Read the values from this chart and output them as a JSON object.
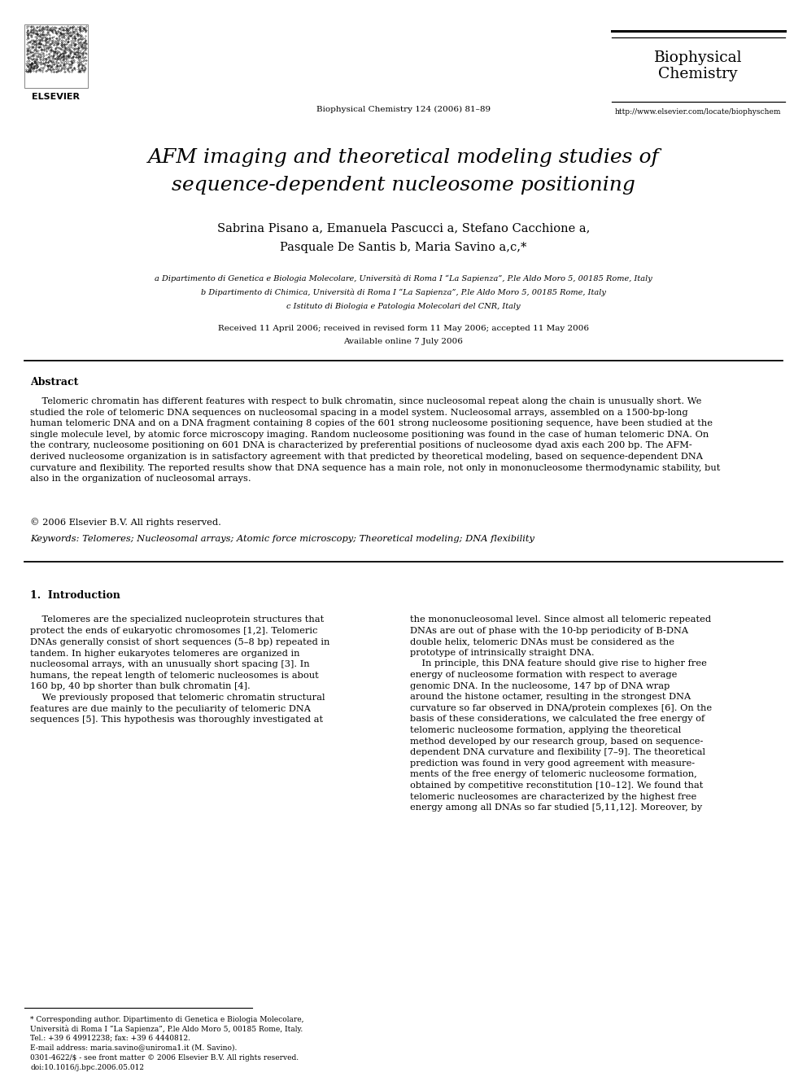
{
  "bg_color": "#ffffff",
  "journal_name_line1": "Biophysical",
  "journal_name_line2": "Chemistry",
  "journal_ref": "Biophysical Chemistry 124 (2006) 81–89",
  "journal_url": "http://www.elsevier.com/locate/biophyschem",
  "title_line1": "AFM imaging and theoretical modeling studies of",
  "title_line2": "sequence-dependent nucleosome positioning",
  "authors_line1": "Sabrina Pisano a, Emanuela Pascucci a, Stefano Cacchione a,",
  "authors_line2": "Pasquale De Santis b, Maria Savino a,c,*",
  "affil_a": "a Dipartimento di Genetica e Biologia Molecolare, Università di Roma I “La Sapienza”, P.le Aldo Moro 5, 00185 Rome, Italy",
  "affil_b": "b Dipartimento di Chimica, Università di Roma I “La Sapienza”, P.le Aldo Moro 5, 00185 Rome, Italy",
  "affil_c": "c Istituto di Biologia e Patologia Molecolari del CNR, Italy",
  "received": "Received 11 April 2006; received in revised form 11 May 2006; accepted 11 May 2006",
  "available": "Available online 7 July 2006",
  "abstract_title": "Abstract",
  "abstract_lines": [
    "    Telomeric chromatin has different features with respect to bulk chromatin, since nucleosomal repeat along the chain is unusually short. We",
    "studied the role of telomeric DNA sequences on nucleosomal spacing in a model system. Nucleosomal arrays, assembled on a 1500-bp-long",
    "human telomeric DNA and on a DNA fragment containing 8 copies of the 601 strong nucleosome positioning sequence, have been studied at the",
    "single molecule level, by atomic force microscopy imaging. Random nucleosome positioning was found in the case of human telomeric DNA. On",
    "the contrary, nucleosome positioning on 601 DNA is characterized by preferential positions of nucleosome dyad axis each 200 bp. The AFM-",
    "derived nucleosome organization is in satisfactory agreement with that predicted by theoretical modeling, based on sequence-dependent DNA",
    "curvature and flexibility. The reported results show that DNA sequence has a main role, not only in mononucleosome thermodynamic stability, but",
    "also in the organization of nucleosomal arrays."
  ],
  "copyright": "© 2006 Elsevier B.V. All rights reserved.",
  "keywords": "Keywords: Telomeres; Nucleosomal arrays; Atomic force microscopy; Theoretical modeling; DNA flexibility",
  "intro_title": "1.  Introduction",
  "intro_col1_lines": [
    "    Telomeres are the specialized nucleoprotein structures that",
    "protect the ends of eukaryotic chromosomes [1,2]. Telomeric",
    "DNAs generally consist of short sequences (5–8 bp) repeated in",
    "tandem. In higher eukaryotes telomeres are organized in",
    "nucleosomal arrays, with an unusually short spacing [3]. In",
    "humans, the repeat length of telomeric nucleosomes is about",
    "160 bp, 40 bp shorter than bulk chromatin [4].",
    "    We previously proposed that telomeric chromatin structural",
    "features are due mainly to the peculiarity of telomeric DNA",
    "sequences [5]. This hypothesis was thoroughly investigated at"
  ],
  "intro_col2_lines": [
    "the mononucleosomal level. Since almost all telomeric repeated",
    "DNAs are out of phase with the 10-bp periodicity of B-DNA",
    "double helix, telomeric DNAs must be considered as the",
    "prototype of intrinsically straight DNA.",
    "    In principle, this DNA feature should give rise to higher free",
    "energy of nucleosome formation with respect to average",
    "genomic DNA. In the nucleosome, 147 bp of DNA wrap",
    "around the histone octamer, resulting in the strongest DNA",
    "curvature so far observed in DNA/protein complexes [6]. On the",
    "basis of these considerations, we calculated the free energy of",
    "telomeric nucleosome formation, applying the theoretical",
    "method developed by our research group, based on sequence-",
    "dependent DNA curvature and flexibility [7–9]. The theoretical",
    "prediction was found in very good agreement with measure-",
    "ments of the free energy of telomeric nucleosome formation,",
    "obtained by competitive reconstitution [10–12]. We found that",
    "telomeric nucleosomes are characterized by the highest free",
    "energy among all DNAs so far studied [5,11,12]. Moreover, by"
  ],
  "footnote_line1": "* Corresponding author. Dipartimento di Genetica e Biologia Molecolare,",
  "footnote_line2": "Università di Roma I “La Sapienza”, P.le Aldo Moro 5, 00185 Rome, Italy.",
  "footnote_line3": "Tel.: +39 6 49912238; fax: +39 6 4440812.",
  "footnote_email": "E-mail address: maria.savino@uniroma1.it (M. Savino).",
  "footnote_issn": "0301-4622/$ - see front matter © 2006 Elsevier B.V. All rights reserved.",
  "footnote_doi": "doi:10.1016/j.bpc.2006.05.012"
}
